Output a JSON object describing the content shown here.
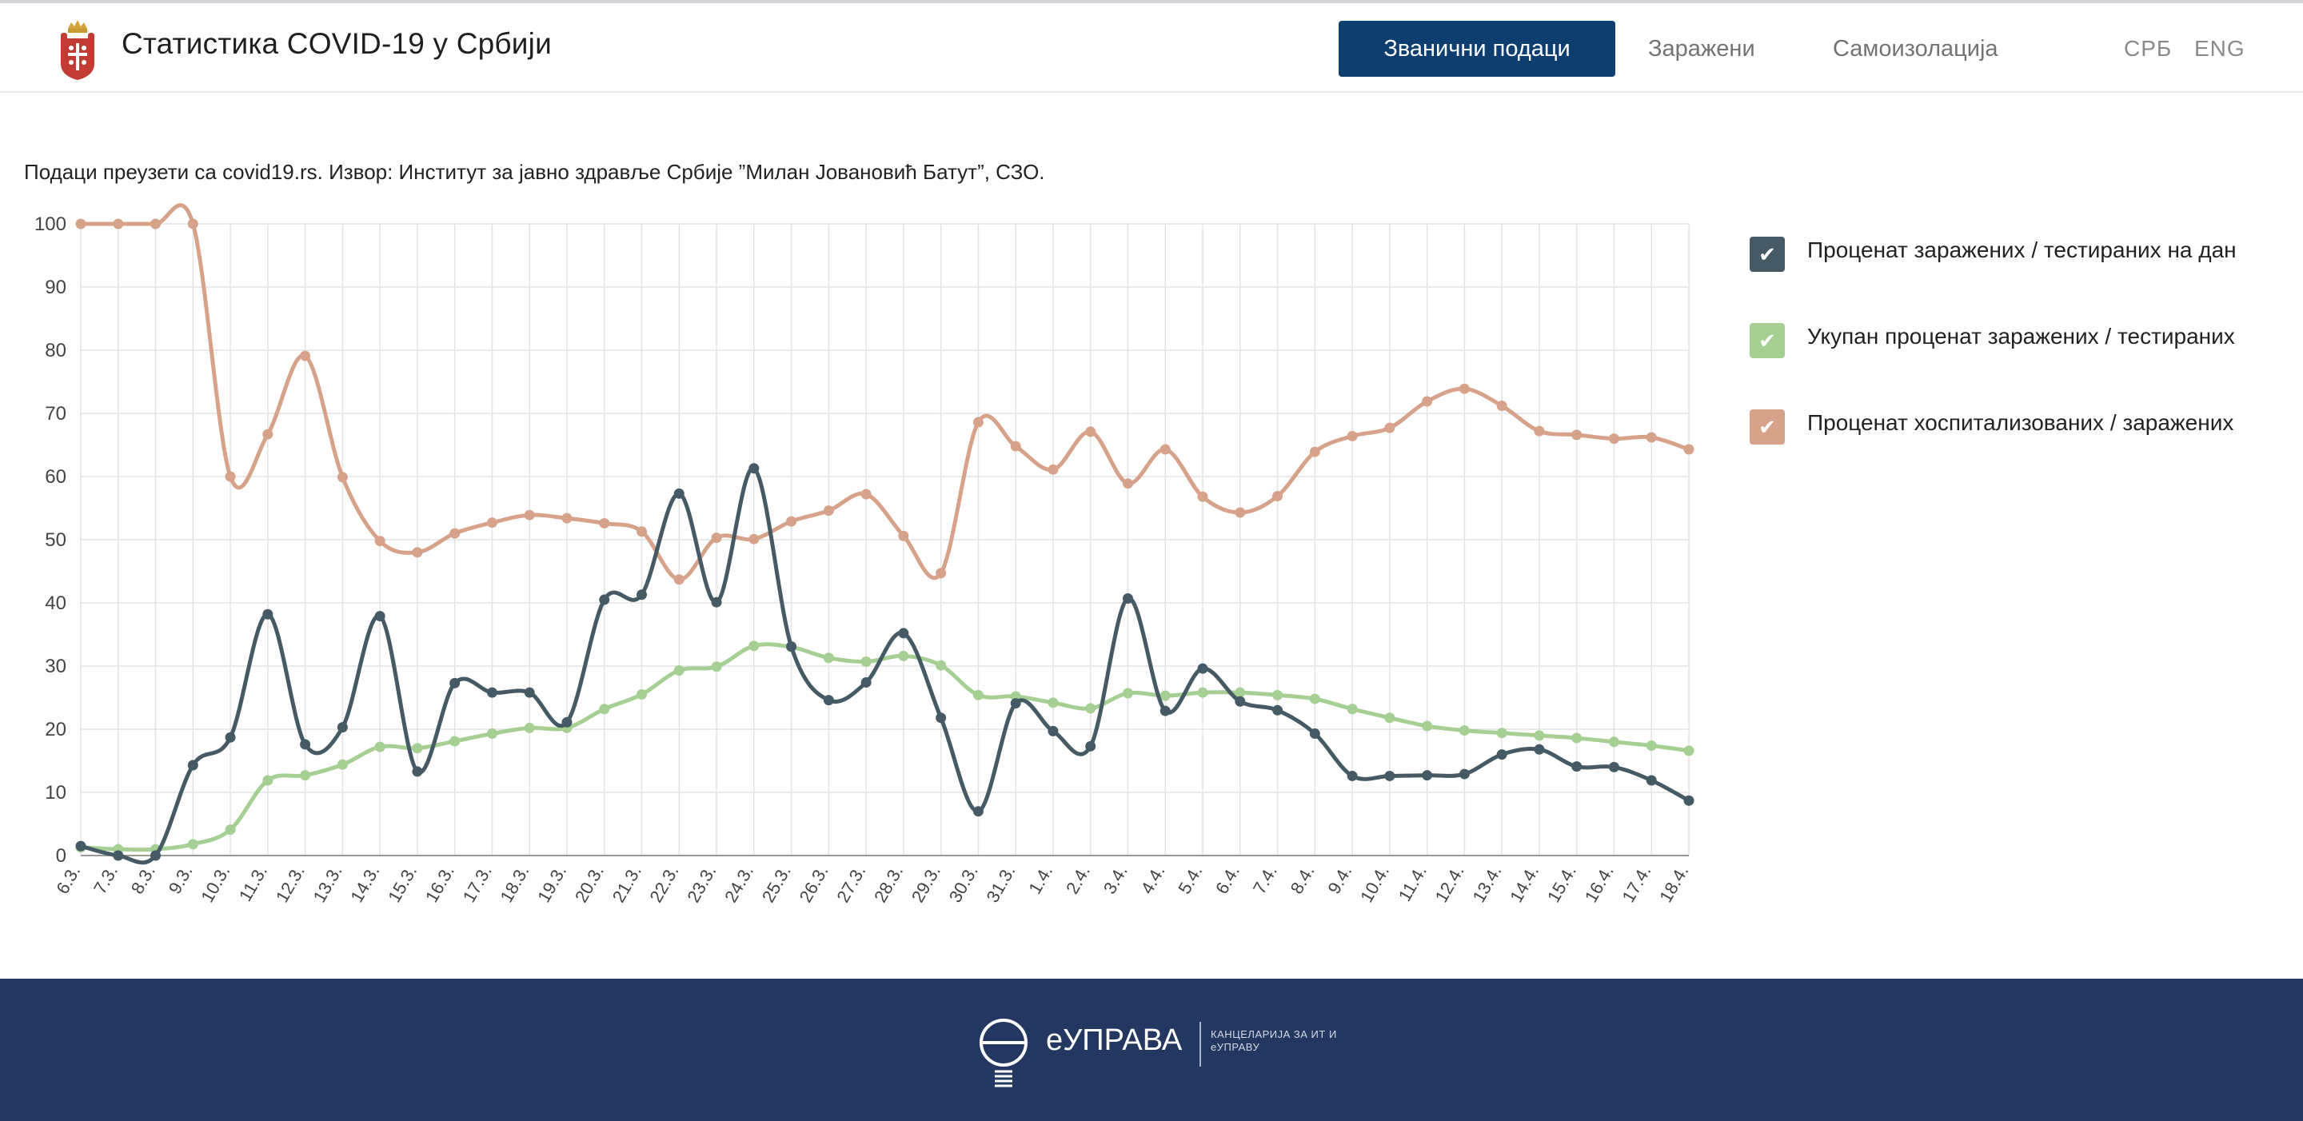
{
  "header": {
    "title": "Статистика COVID-19 у Србији",
    "nav_active": "Званични подаци",
    "nav_links": [
      "Заражени",
      "Самоизолација"
    ],
    "lang": [
      "СРБ",
      "ENG"
    ]
  },
  "source_note": "Подаци преузети са covid19.rs. Извор: Институт за јавно здравље Србије ”Милан Јовановић Батут”, СЗО.",
  "chart_data": {
    "type": "line",
    "categories": [
      "6.3.",
      "7.3.",
      "8.3.",
      "9.3.",
      "10.3.",
      "11.3.",
      "12.3.",
      "13.3.",
      "14.3.",
      "15.3.",
      "16.3.",
      "17.3.",
      "18.3.",
      "19.3.",
      "20.3.",
      "21.3.",
      "22.3.",
      "23.3.",
      "24.3.",
      "25.3.",
      "26.3.",
      "27.3.",
      "28.3.",
      "29.3.",
      "30.3.",
      "31.3.",
      "1.4.",
      "2.4.",
      "3.4.",
      "4.4.",
      "5.4.",
      "6.4.",
      "7.4.",
      "8.4.",
      "9.4.",
      "10.4.",
      "11.4.",
      "12.4.",
      "13.4.",
      "14.4.",
      "15.4.",
      "16.4.",
      "17.4.",
      "18.4."
    ],
    "ylim": [
      0,
      100
    ],
    "yticks": [
      0,
      10,
      20,
      30,
      40,
      50,
      60,
      70,
      80,
      90,
      100
    ],
    "grid": true,
    "legend_position": "right",
    "series": [
      {
        "name": "Проценат заражених / тестираних на дан",
        "color": "#455a64",
        "values": [
          1.5,
          0,
          0,
          14.3,
          18.7,
          38.2,
          17.6,
          20.3,
          37.9,
          13.3,
          27.3,
          25.8,
          25.8,
          21.1,
          40.5,
          41.3,
          57.3,
          40.1,
          61.3,
          33.1,
          24.6,
          27.4,
          35.2,
          21.8,
          7.0,
          24.1,
          19.7,
          17.3,
          40.7,
          22.9,
          29.6,
          24.4,
          23.0,
          19.3,
          12.6,
          12.6,
          12.7,
          12.9,
          16.0,
          16.8,
          14.1,
          14.0,
          11.9,
          8.7
        ]
      },
      {
        "name": "Укупан проценат заражених / тестираних",
        "color": "#a5cf93",
        "values": [
          1.3,
          1.0,
          1.0,
          1.8,
          4.1,
          11.9,
          12.7,
          14.4,
          17.2,
          17.0,
          18.1,
          19.3,
          20.2,
          20.2,
          23.2,
          25.5,
          29.3,
          29.9,
          33.2,
          33.0,
          31.3,
          30.7,
          31.6,
          30.1,
          25.4,
          25.2,
          24.2,
          23.3,
          25.7,
          25.3,
          25.8,
          25.8,
          25.4,
          24.8,
          23.2,
          21.8,
          20.5,
          19.8,
          19.4,
          19.0,
          18.6,
          18.0,
          17.4,
          16.6
        ]
      },
      {
        "name": "Проценат хоспитализованих / заражених",
        "color": "#d6a28a",
        "values": [
          100,
          100,
          100,
          100,
          60.0,
          66.7,
          79.1,
          59.9,
          49.8,
          48.0,
          51.0,
          52.7,
          53.9,
          53.4,
          52.6,
          51.3,
          43.7,
          50.3,
          50.1,
          52.9,
          54.6,
          57.2,
          50.6,
          44.7,
          68.6,
          64.8,
          61.1,
          67.1,
          58.9,
          64.3,
          56.8,
          54.3,
          56.9,
          63.9,
          66.4,
          67.7,
          71.9,
          73.9,
          71.2,
          67.2,
          66.6,
          66.0,
          66.2,
          64.3
        ]
      }
    ]
  },
  "footer": {
    "logo_name": "еУПРАВА",
    "logo_sub": "КАНЦЕЛАРИЈА ЗА ИТ И еУПРАВУ"
  }
}
